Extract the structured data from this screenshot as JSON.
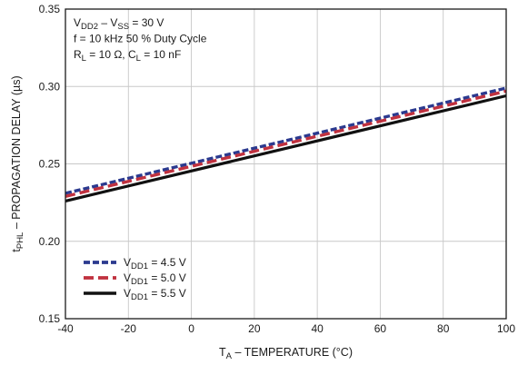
{
  "chart_data": {
    "type": "line",
    "xlabel": {
      "main": "T",
      "sub": "A",
      "rest": " – TEMPERATURE (°C)"
    },
    "ylabel": {
      "main": "t",
      "sub": "PHL",
      "rest": " – PROPAGATION DELAY (µs)"
    },
    "xlim": [
      -40,
      100
    ],
    "ylim": [
      0.15,
      0.35
    ],
    "x_ticks": [
      -40,
      -20,
      0,
      20,
      40,
      60,
      80,
      100
    ],
    "y_ticks": [
      0.15,
      0.2,
      0.25,
      0.3,
      0.35
    ],
    "x_tick_labels": [
      "-40",
      "-20",
      "0",
      "20",
      "40",
      "60",
      "80",
      "100"
    ],
    "y_tick_labels": [
      "0.15",
      "0.20",
      "0.25",
      "0.30",
      "0.35"
    ],
    "grid": true,
    "legend_position": "bottom-left",
    "annotations": [
      [
        {
          "t": "V",
          "s": false
        },
        {
          "t": "DD2",
          "s": true
        },
        {
          "t": " – V",
          "s": false
        },
        {
          "t": "SS",
          "s": true
        },
        {
          "t": " = 30 V",
          "s": false
        }
      ],
      [
        {
          "t": "f = 10 kHz 50 % Duty Cycle",
          "s": false
        }
      ],
      [
        {
          "t": "R",
          "s": false
        },
        {
          "t": "L",
          "s": true
        },
        {
          "t": " = 10 Ω, C",
          "s": false
        },
        {
          "t": "L",
          "s": true
        },
        {
          "t": " = 10 nF",
          "s": false
        }
      ]
    ],
    "series": [
      {
        "main": "V",
        "sub": "DD1",
        "rest": " = 4.5 V",
        "color": "#2b3a8f",
        "dash": "dotted",
        "x": [
          -40,
          100
        ],
        "y": [
          0.231,
          0.299
        ]
      },
      {
        "main": "V",
        "sub": "DD1",
        "rest": " = 5.0 V",
        "color": "#c0313f",
        "dash": "dashed",
        "x": [
          -40,
          100
        ],
        "y": [
          0.229,
          0.297
        ]
      },
      {
        "main": "V",
        "sub": "DD1",
        "rest": " = 5.5 V",
        "color": "#111111",
        "dash": "solid",
        "x": [
          -40,
          100
        ],
        "y": [
          0.226,
          0.294
        ]
      }
    ]
  }
}
